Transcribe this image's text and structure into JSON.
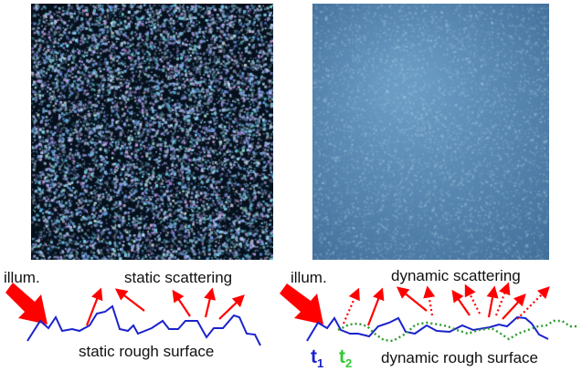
{
  "colors": {
    "arrow": "#ff0000",
    "surface_t1": "#1a22cc",
    "surface_t2": "#2f9a2f",
    "static_speckle_bg": "#05101c",
    "static_speckle_dot": "#a8c8ee",
    "dynamic_speckle_bg": "#4a7aa5",
    "dynamic_speckle_dot": "#b8d2ea"
  },
  "left": {
    "illum_label": "illum.",
    "scatter_label": "static scattering",
    "surface_label": "static rough surface"
  },
  "right": {
    "illum_label": "illum.",
    "scatter_label": "dynamic scattering",
    "surface_label": "dynamic rough surface",
    "t1": {
      "letter": "t",
      "sub": "1"
    },
    "t2": {
      "letter": "t",
      "sub": "2"
    }
  }
}
